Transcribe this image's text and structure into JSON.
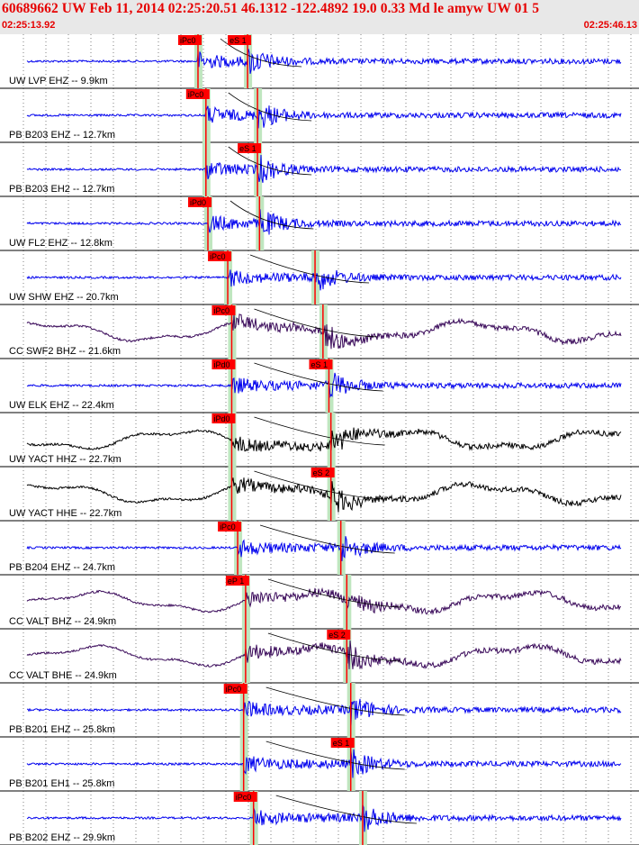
{
  "header": {
    "title": "60689662 UW Feb 11, 2014 02:25:20.51   46.1312 -122.4892 19.0 0.33 Md le amyw UW 01    5",
    "time_start": "02:25:13.92",
    "time_end": "02:25:46.13"
  },
  "colors": {
    "header_bg": "#e8e8e8",
    "header_text": "#e60000",
    "trace_blue": "#0000ee",
    "trace_purple": "#3a0a5a",
    "trace_black": "#000000",
    "pick_red": "#ff0000",
    "window_green": "#bfe6bf",
    "grid": "#000000"
  },
  "chart_data": {
    "type": "line",
    "x_axis": {
      "start": "02:25:13.92",
      "end": "02:25:46.13",
      "ticks_vertical_grid": true
    },
    "traces": [
      {
        "label": "UW LVP EHZ -- 9.9km",
        "color": "blue",
        "p_pick": "iPc0",
        "s_pick": "eS 1",
        "p_time": "02:25:23.9",
        "s_time": "02:25:26.4",
        "coda_end": "02:25:46.0"
      },
      {
        "label": "PB B203 EHZ -- 12.7km",
        "color": "blue",
        "p_pick": "iPc0",
        "s_pick": "",
        "p_time": "02:25:24.3",
        "s_time": "02:25:26.9",
        "coda_end": "02:25:46.2"
      },
      {
        "label": "PB B203 EH2 -- 12.7km",
        "color": "blue",
        "p_pick": "",
        "s_pick": "eS 1",
        "p_time": "02:25:24.3",
        "s_time": "02:25:26.9",
        "coda_end": "02:25:46.3"
      },
      {
        "label": "UW FL2 EHZ -- 12.8km",
        "color": "blue",
        "p_pick": "iPd0",
        "s_pick": "",
        "p_time": "02:25:24.4",
        "s_time": "02:25:27.0",
        "coda_end": "02:25:46.2"
      },
      {
        "label": "UW SHW EHZ -- 20.7km",
        "color": "blue",
        "p_pick": "iPc0",
        "s_pick": "",
        "p_time": "02:25:25.4",
        "s_time": "02:25:29.8",
        "coda_end": "02:25:47.0"
      },
      {
        "label": "CC SWF2 BHZ -- 21.6km",
        "color": "purple",
        "p_pick": "iPc0",
        "s_pick": "",
        "p_time": "02:25:25.6",
        "s_time": "02:25:30.2",
        "coda_end": "02:25:47.0"
      },
      {
        "label": "UW ELK EHZ -- 22.4km",
        "color": "blue",
        "p_pick": "iPd0",
        "s_pick": "eS 1",
        "p_time": "02:25:25.6",
        "s_time": "02:25:30.5",
        "coda_end": "02:25:46.8"
      },
      {
        "label": "UW YACT HHZ -- 22.7km",
        "color": "black",
        "p_pick": "iPd0",
        "s_pick": "",
        "p_time": "02:25:25.6",
        "s_time": "02:25:30.6",
        "coda_end": "02:25:46.8"
      },
      {
        "label": "UW YACT HHE -- 22.7km",
        "color": "black",
        "p_pick": "",
        "s_pick": "eS 2",
        "p_time": "02:25:25.6",
        "s_time": "02:25:30.6",
        "coda_end": "02:25:46.8"
      },
      {
        "label": "PB B204 EHZ -- 24.7km",
        "color": "blue",
        "p_pick": "iPc0",
        "s_pick": "",
        "p_time": "02:25:25.9",
        "s_time": "02:25:31.1",
        "coda_end": "02:25:46.8"
      },
      {
        "label": "CC VALT BHZ -- 24.9km",
        "color": "purple",
        "p_pick": "eP 1",
        "s_pick": "",
        "p_time": "02:25:26.3",
        "s_time": "02:25:31.4",
        "coda_end": "02:25:47.0"
      },
      {
        "label": "CC VALT BHE -- 24.9km",
        "color": "purple",
        "p_pick": "",
        "s_pick": "eS 2",
        "p_time": "02:25:26.3",
        "s_time": "02:25:31.4",
        "coda_end": "02:25:47.0"
      },
      {
        "label": "PB B201 EHZ -- 25.8km",
        "color": "blue",
        "p_pick": "iPc0",
        "s_pick": "",
        "p_time": "02:25:26.2",
        "s_time": "02:25:31.6",
        "coda_end": "02:25:46.8"
      },
      {
        "label": "PB B201 EH1 -- 25.8km",
        "color": "blue",
        "p_pick": "",
        "s_pick": "eS 1",
        "p_time": "02:25:26.2",
        "s_time": "02:25:31.6",
        "coda_end": "02:25:46.8"
      },
      {
        "label": "PB B202 EHZ -- 29.9km",
        "color": "blue",
        "p_pick": "iPc0",
        "s_pick": "",
        "p_time": "02:25:26.7",
        "s_time": "02:25:32.2",
        "coda_end": "02:25:47.0"
      }
    ]
  }
}
